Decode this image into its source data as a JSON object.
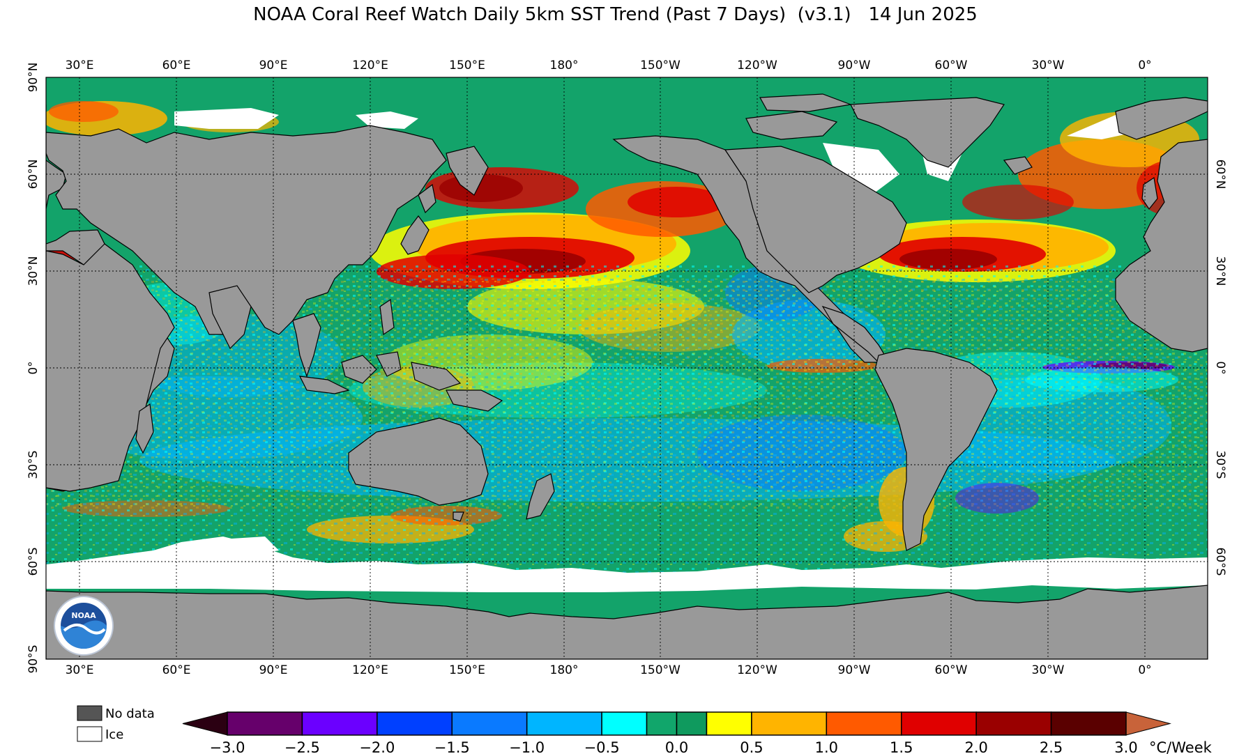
{
  "title": "NOAA Coral Reef Watch Daily 5km SST Trend (Past 7 Days)  (v3.1)   14 Jun 2025",
  "map": {
    "projection": "equirectangular",
    "lon_center": 180,
    "lon_range": [
      15,
      375
    ],
    "lat_range": [
      -90,
      90
    ],
    "land_color": "#999999",
    "ice_color": "#ffffff",
    "ocean_dominant_color": "#13a36a",
    "gridlines": "dotted",
    "lon_ticks": [
      "30°E",
      "60°E",
      "90°E",
      "120°E",
      "150°E",
      "180°",
      "150°W",
      "120°W",
      "90°W",
      "60°W",
      "30°W",
      "0°"
    ],
    "lat_ticks_left": [
      "90°N",
      "60°N",
      "30°N",
      "0°",
      "30°S",
      "60°S",
      "90°S"
    ],
    "lat_ticks_right": [
      "60°N",
      "30°N",
      "0°",
      "30°S",
      "60°S"
    ],
    "logo": "noaa-logo"
  },
  "legend": {
    "no_data_label": "No data",
    "no_data_color": "#555555",
    "ice_label": "Ice",
    "ice_color": "#ffffff"
  },
  "colorbar": {
    "unit": "°C/Week",
    "ticks": [
      "−3.0",
      "−2.5",
      "−2.0",
      "−1.5",
      "−1.0",
      "−0.5",
      "0.0",
      "0.5",
      "1.0",
      "1.5",
      "2.0",
      "2.5",
      "3.0"
    ],
    "under_color": "#2b0012",
    "over_color": "#c8633a",
    "bins": [
      {
        "from": -3.0,
        "to": -2.5,
        "color": "#66006b"
      },
      {
        "from": -2.5,
        "to": -2.0,
        "color": "#6b00ff"
      },
      {
        "from": -2.0,
        "to": -1.5,
        "color": "#0040ff"
      },
      {
        "from": -1.5,
        "to": -1.0,
        "color": "#0a7aff"
      },
      {
        "from": -1.0,
        "to": -0.5,
        "color": "#00b5ff"
      },
      {
        "from": -0.5,
        "to": -0.2,
        "color": "#00ffff"
      },
      {
        "from": -0.2,
        "to": 0.0,
        "color": "#11a66b"
      },
      {
        "from": 0.0,
        "to": 0.2,
        "color": "#0f9a5e"
      },
      {
        "from": 0.2,
        "to": 0.5,
        "color": "#ffff00"
      },
      {
        "from": 0.5,
        "to": 1.0,
        "color": "#ffb400"
      },
      {
        "from": 1.0,
        "to": 1.5,
        "color": "#ff5a00"
      },
      {
        "from": 1.5,
        "to": 2.0,
        "color": "#e00000"
      },
      {
        "from": 2.0,
        "to": 2.5,
        "color": "#9a0000"
      },
      {
        "from": 2.5,
        "to": 3.0,
        "color": "#5a0000"
      }
    ]
  }
}
